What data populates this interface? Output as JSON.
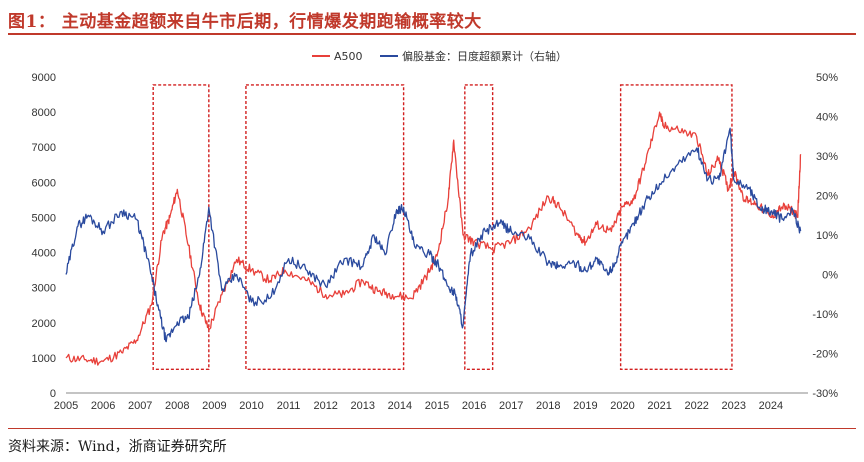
{
  "figure": {
    "title": "图1：  主动基金超额来自牛市后期，行情爆发期跑输概率较大",
    "source": "资料来源：Wind，浙商证券研究所"
  },
  "colors": {
    "a500": "#e8403a",
    "fund": "#2a4a9e",
    "box": "#d21f1f",
    "accent": "#c0392b"
  },
  "chart_data": {
    "type": "line",
    "title": "",
    "x_axis": {
      "ticks": [
        "2005",
        "2006",
        "2007",
        "2008",
        "2009",
        "2010",
        "2011",
        "2012",
        "2013",
        "2014",
        "2015",
        "2016",
        "2017",
        "2018",
        "2019",
        "2020",
        "2021",
        "2022",
        "2023",
        "2024"
      ],
      "range": [
        2005,
        2025
      ]
    },
    "y_left": {
      "range": [
        0,
        9000
      ],
      "ticks": [
        "0",
        "1000",
        "2000",
        "3000",
        "4000",
        "5000",
        "6000",
        "7000",
        "8000",
        "9000"
      ]
    },
    "y_right": {
      "range": [
        -30,
        50
      ],
      "ticks": [
        "-30%",
        "-20%",
        "-10%",
        "0%",
        "10%",
        "20%",
        "30%",
        "40%",
        "50%"
      ]
    },
    "grid": false,
    "legend_position": "top",
    "series": [
      {
        "name": "A500",
        "axis": "left",
        "x": [
          2005.0,
          2005.5,
          2006.0,
          2006.5,
          2006.9,
          2007.3,
          2007.6,
          2007.8,
          2008.0,
          2008.3,
          2008.6,
          2008.85,
          2009.2,
          2009.6,
          2010.0,
          2010.5,
          2010.9,
          2011.5,
          2012.0,
          2012.5,
          2013.0,
          2013.4,
          2013.8,
          2014.3,
          2014.7,
          2015.0,
          2015.3,
          2015.45,
          2015.7,
          2016.0,
          2016.5,
          2017.0,
          2017.5,
          2018.0,
          2018.3,
          2018.8,
          2019.0,
          2019.3,
          2019.7,
          2020.0,
          2020.3,
          2020.6,
          2021.0,
          2021.1,
          2021.5,
          2022.0,
          2022.3,
          2022.6,
          2022.85,
          2023.0,
          2023.3,
          2023.6,
          2024.0,
          2024.3,
          2024.6,
          2024.72,
          2024.8
        ],
        "y": [
          1000,
          950,
          900,
          1150,
          1500,
          2500,
          4500,
          5000,
          5800,
          4200,
          2500,
          1800,
          2800,
          3800,
          3500,
          3200,
          3500,
          3200,
          2800,
          2800,
          3200,
          2900,
          2800,
          2700,
          3300,
          3900,
          5500,
          7200,
          4500,
          4300,
          4100,
          4300,
          4700,
          5600,
          5300,
          4500,
          4300,
          4800,
          4600,
          5300,
          5500,
          6500,
          8000,
          7600,
          7500,
          7300,
          6200,
          6700,
          5800,
          6300,
          5500,
          5400,
          5000,
          5300,
          5200,
          5000,
          6800
        ]
      },
      {
        "name": "偏股基金：日度超额累计（右轴）",
        "axis": "right",
        "x": [
          2005.0,
          2005.3,
          2005.6,
          2006.0,
          2006.5,
          2006.9,
          2007.2,
          2007.5,
          2007.7,
          2008.0,
          2008.3,
          2008.6,
          2008.85,
          2009.2,
          2009.6,
          2010.0,
          2010.5,
          2011.0,
          2011.5,
          2012.0,
          2012.5,
          2013.0,
          2013.3,
          2013.6,
          2013.9,
          2014.1,
          2014.4,
          2014.8,
          2015.0,
          2015.3,
          2015.5,
          2015.7,
          2015.9,
          2016.3,
          2016.7,
          2017.0,
          2017.5,
          2018.0,
          2018.3,
          2018.7,
          2019.0,
          2019.3,
          2019.6,
          2019.8,
          2020.0,
          2020.3,
          2020.6,
          2021.0,
          2021.5,
          2022.0,
          2022.3,
          2022.6,
          2022.9,
          2023.0,
          2023.4,
          2023.7,
          2024.0,
          2024.3,
          2024.6,
          2024.8
        ],
        "y": [
          0,
          12,
          15,
          11,
          16,
          14,
          4,
          -9,
          -17,
          -12,
          -11,
          0,
          17,
          -4,
          0,
          -7,
          -6,
          4,
          1,
          -3,
          4,
          2,
          10,
          5,
          16,
          17,
          7,
          5,
          3,
          -3,
          -5,
          -13,
          5,
          11,
          13,
          11,
          9,
          3,
          2,
          3,
          1,
          4,
          0,
          3,
          8,
          13,
          18,
          23,
          28,
          32,
          24,
          24,
          37,
          24,
          22,
          17,
          16,
          14,
          16,
          11
        ]
      }
    ],
    "highlight_boxes": [
      {
        "x": [
          2007.35,
          2008.85
        ],
        "y": [
          -24,
          48
        ]
      },
      {
        "x": [
          2009.85,
          2014.1
        ],
        "y": [
          -24,
          48
        ]
      },
      {
        "x": [
          2015.75,
          2016.5
        ],
        "y": [
          -24,
          48
        ]
      },
      {
        "x": [
          2019.95,
          2022.95
        ],
        "y": [
          -24,
          48
        ]
      }
    ]
  }
}
